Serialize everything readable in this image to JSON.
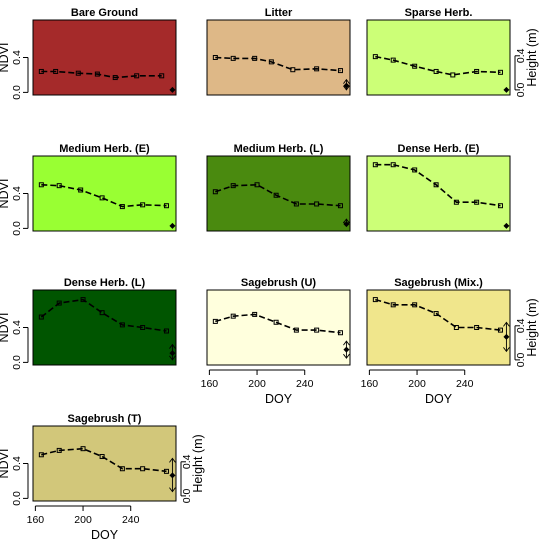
{
  "chart_data": {
    "type": "line",
    "axes": {
      "xlabel": "DOY",
      "ylabel_left": "NDVI",
      "ylabel_right": "Height (m)",
      "x_ticks": [
        160,
        200,
        240
      ],
      "ndvi_ticks": [
        0.0,
        0.4
      ],
      "height_ticks": [
        0.0,
        0.4
      ],
      "xlim": [
        158,
        278
      ],
      "ndvi_lim": [
        -0.03,
        0.83
      ],
      "height_lim": [
        -0.06,
        0.82
      ]
    },
    "panels": [
      {
        "title": "Bare Ground",
        "bg": "#a52a2a",
        "doy": [
          165,
          177,
          196,
          212,
          227,
          245,
          266
        ],
        "ndvi": [
          0.24,
          0.24,
          0.22,
          0.21,
          0.17,
          0.19,
          0.19
        ],
        "height": {
          "mean": 0.0,
          "low": 0.0,
          "high": 0.0
        }
      },
      {
        "title": "Litter",
        "bg": "#deb887",
        "doy": [
          165,
          180,
          198,
          212,
          230,
          250,
          270
        ],
        "ndvi": [
          0.4,
          0.39,
          0.39,
          0.35,
          0.26,
          0.27,
          0.25
        ],
        "height": {
          "mean": 0.05,
          "low": 0.0,
          "high": 0.12
        }
      },
      {
        "title": "Sparse Herb.",
        "bg": "#ccff77",
        "doy": [
          165,
          180,
          198,
          216,
          230,
          250,
          270
        ],
        "ndvi": [
          0.41,
          0.37,
          0.3,
          0.24,
          0.2,
          0.24,
          0.23
        ],
        "height": {
          "mean": 0.0,
          "low": 0.0,
          "high": 0.0
        }
      },
      {
        "title": "Medium Herb. (E)",
        "bg": "#99ff33",
        "doy": [
          165,
          180,
          198,
          216,
          233,
          250,
          270
        ],
        "ndvi": [
          0.5,
          0.49,
          0.44,
          0.35,
          0.25,
          0.27,
          0.26
        ],
        "height": {
          "mean": 0.0,
          "low": 0.0,
          "high": 0.0
        }
      },
      {
        "title": "Medium Herb. (L)",
        "bg": "#4a8a0f",
        "doy": [
          165,
          180,
          200,
          216,
          233,
          250,
          270
        ],
        "ndvi": [
          0.42,
          0.49,
          0.5,
          0.38,
          0.28,
          0.28,
          0.26
        ],
        "height": {
          "mean": 0.02,
          "low": 0.0,
          "high": 0.08
        }
      },
      {
        "title": "Dense Herb. (E)",
        "bg": "#ccff77",
        "doy": [
          165,
          180,
          198,
          216,
          233,
          250,
          270
        ],
        "ndvi": [
          0.73,
          0.73,
          0.67,
          0.5,
          0.3,
          0.3,
          0.26
        ],
        "height": {
          "mean": 0.0,
          "low": 0.0,
          "high": 0.0
        }
      },
      {
        "title": "Dense Herb. (L)",
        "bg": "#005500",
        "doy": [
          165,
          180,
          200,
          216,
          233,
          250,
          270
        ],
        "ndvi": [
          0.52,
          0.68,
          0.72,
          0.57,
          0.43,
          0.4,
          0.36
        ],
        "height": {
          "mean": 0.08,
          "low": 0.0,
          "high": 0.18
        }
      },
      {
        "title": "Sagebrush (U)",
        "bg": "#ffffdd",
        "doy": [
          165,
          180,
          198,
          216,
          233,
          250,
          270
        ],
        "ndvi": [
          0.47,
          0.53,
          0.55,
          0.46,
          0.37,
          0.37,
          0.34
        ],
        "height": {
          "mean": 0.12,
          "low": 0.02,
          "high": 0.22
        }
      },
      {
        "title": "Sagebrush (Mix.)",
        "bg": "#f0e68c",
        "doy": [
          165,
          180,
          198,
          216,
          233,
          250,
          270
        ],
        "ndvi": [
          0.72,
          0.66,
          0.66,
          0.56,
          0.4,
          0.4,
          0.37
        ],
        "height": {
          "mean": 0.27,
          "low": 0.1,
          "high": 0.44
        }
      },
      {
        "title": "Sagebrush (T)",
        "bg": "#d2c77a",
        "doy": [
          165,
          180,
          200,
          216,
          233,
          250,
          270
        ],
        "ndvi": [
          0.5,
          0.55,
          0.57,
          0.48,
          0.34,
          0.34,
          0.31
        ],
        "height": {
          "mean": 0.24,
          "low": 0.05,
          "high": 0.44
        }
      }
    ]
  }
}
